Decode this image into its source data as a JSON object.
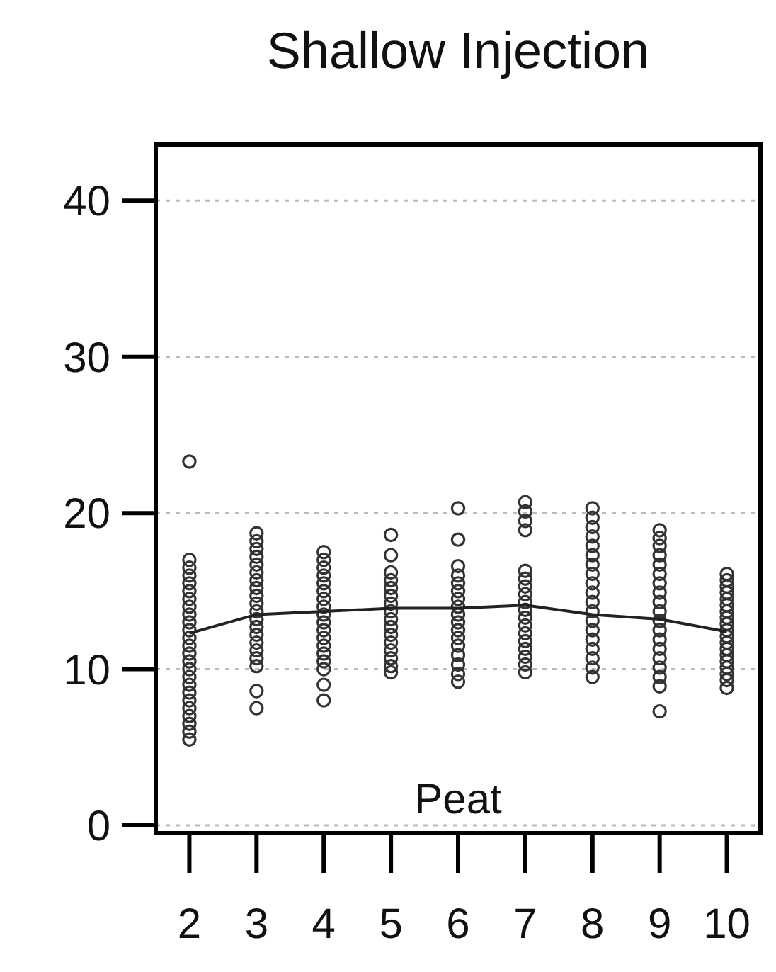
{
  "chart_data": {
    "type": "scatter",
    "title": "Shallow Injection",
    "annotations": [
      "Peat"
    ],
    "xlim": [
      1.5,
      10.5
    ],
    "xticks": [
      2,
      3,
      4,
      5,
      6,
      7,
      8,
      9,
      10
    ],
    "ylim": [
      -0.5,
      43.6
    ],
    "yticks": [
      0,
      10,
      20,
      30,
      40
    ],
    "grid": "y",
    "series": [
      {
        "color": "#333333",
        "marker": "circle",
        "x": [
          2,
          2,
          2,
          2,
          2,
          2,
          2,
          2,
          2,
          2,
          2,
          2,
          2,
          2,
          2,
          2,
          2,
          2,
          2,
          2,
          2,
          2,
          2,
          2,
          2,
          3,
          3,
          3,
          3,
          3,
          3,
          3,
          3,
          3,
          3,
          3,
          3,
          3,
          3,
          3,
          3,
          3,
          3,
          3,
          3,
          4,
          4,
          4,
          4,
          4,
          4,
          4,
          4,
          4,
          4,
          4,
          4,
          4,
          4,
          4,
          4,
          4,
          4,
          5,
          5,
          5,
          5,
          5,
          5,
          5,
          5,
          5,
          5,
          5,
          5,
          5,
          5,
          5,
          5,
          6,
          6,
          6,
          6,
          6,
          6,
          6,
          6,
          6,
          6,
          6,
          6,
          6,
          6,
          6,
          6,
          6,
          7,
          7,
          7,
          7,
          7,
          7,
          7,
          7,
          7,
          7,
          7,
          7,
          7,
          7,
          7,
          7,
          7,
          7,
          8,
          8,
          8,
          8,
          8,
          8,
          8,
          8,
          8,
          8,
          8,
          8,
          8,
          8,
          8,
          8,
          8,
          8,
          8,
          9,
          9,
          9,
          9,
          9,
          9,
          9,
          9,
          9,
          9,
          9,
          9,
          9,
          9,
          9,
          9,
          9,
          9,
          9,
          10,
          10,
          10,
          10,
          10,
          10,
          10,
          10,
          10,
          10,
          10,
          10,
          10,
          10,
          10,
          10,
          10,
          10,
          10
        ],
        "values": [
          23.3,
          17,
          16.5,
          16,
          15.5,
          15,
          14.5,
          14,
          13.5,
          13,
          12.5,
          12,
          11.5,
          11,
          10.5,
          10,
          9.5,
          9,
          8.5,
          8,
          7.5,
          7,
          6.5,
          6,
          5.5,
          18.7,
          18.2,
          17.7,
          17.2,
          16.7,
          16.2,
          15.7,
          15.2,
          14.7,
          14.2,
          13.7,
          13.2,
          12.7,
          12.2,
          11.7,
          11.2,
          10.7,
          10.2,
          8.6,
          7.5,
          17.5,
          17,
          16.5,
          16,
          15.5,
          15,
          14.5,
          14,
          13.5,
          13,
          12.5,
          12,
          11.5,
          11,
          10.5,
          10,
          9,
          8,
          18.6,
          17.3,
          16.2,
          15.7,
          15.2,
          14.7,
          14.2,
          13.7,
          13.2,
          12.7,
          12.2,
          11.7,
          11.2,
          10.7,
          10.2,
          9.8,
          20.3,
          18.3,
          16.6,
          16,
          15.5,
          15,
          14.5,
          14,
          13.5,
          13,
          12.5,
          12,
          11.5,
          10.9,
          10.3,
          9.7,
          9.2,
          20.7,
          20.1,
          19.5,
          18.9,
          16.3,
          15.8,
          15.3,
          14.8,
          14.3,
          13.8,
          13.3,
          12.8,
          12.3,
          11.8,
          11.3,
          10.8,
          10.3,
          9.8,
          20.3,
          19.7,
          19.1,
          18.5,
          17.9,
          17.3,
          16.7,
          16.1,
          15.5,
          14.9,
          14.3,
          13.7,
          13.1,
          12.5,
          11.9,
          11.3,
          10.7,
          10.1,
          9.5,
          18.9,
          18.4,
          17.9,
          17.3,
          16.7,
          16.1,
          15.5,
          14.9,
          14.3,
          13.7,
          13.1,
          12.5,
          11.9,
          11.3,
          10.7,
          10.1,
          9.5,
          8.9,
          7.3,
          16.1,
          15.7,
          15.3,
          14.9,
          14.5,
          14.1,
          13.7,
          13.3,
          12.9,
          12.5,
          12.1,
          11.7,
          11.3,
          10.9,
          10.5,
          10.1,
          9.7,
          9.3,
          8.8
        ]
      },
      {
        "type": "line",
        "color": "#222222",
        "marker": "none",
        "line_style": "solid",
        "x": [
          2,
          3,
          4,
          5,
          6,
          7,
          8,
          9,
          10
        ],
        "values": [
          12.3,
          13.5,
          13.7,
          13.9,
          13.9,
          14.1,
          13.5,
          13.2,
          12.4
        ]
      }
    ]
  }
}
